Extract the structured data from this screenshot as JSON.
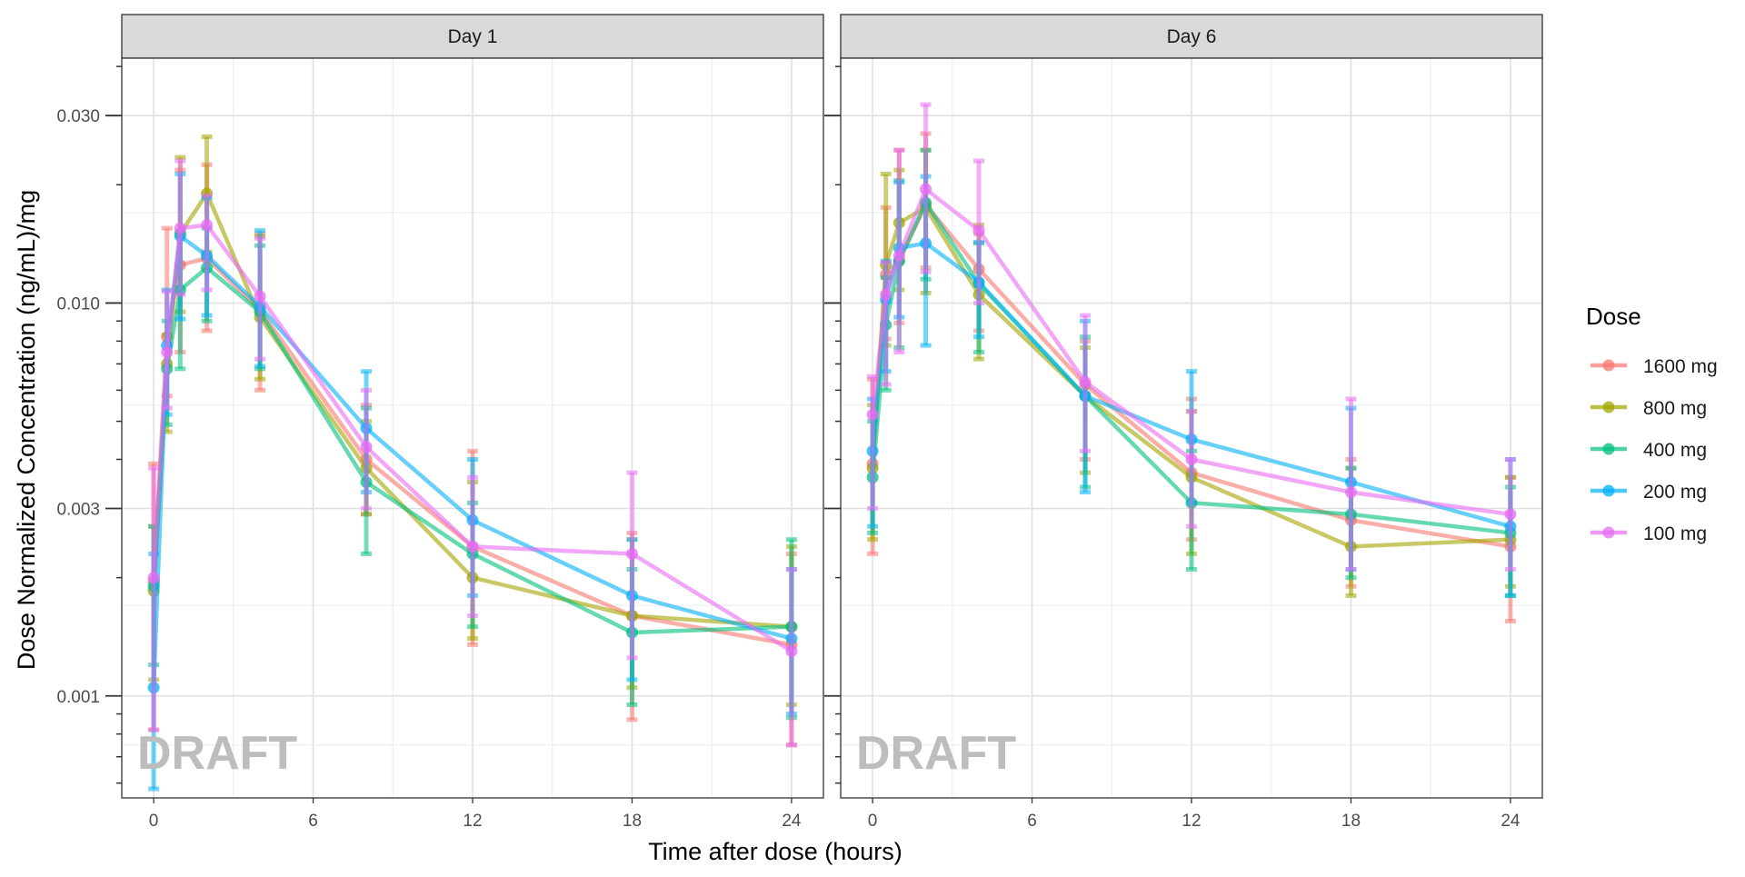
{
  "chart_data": {
    "type": "line",
    "xlabel": "Time after dose (hours)",
    "ylabel": "Dose Normalized Concentration (ng/mL)/mg",
    "y_scale": "log10",
    "ylim": [
      0.00055,
      0.042
    ],
    "xlim": [
      -1.2,
      25.2
    ],
    "x_ticks": [
      0,
      6,
      12,
      18,
      24
    ],
    "x_tick_labels": [
      "0",
      "6",
      "12",
      "18",
      "24"
    ],
    "y_ticks": [
      0.03,
      0.01,
      0.003,
      0.001
    ],
    "y_tick_labels": [
      "0.030",
      "0.010",
      "0.003",
      "0.001"
    ],
    "grid": true,
    "legend": {
      "title": "Dose",
      "position": "right"
    },
    "watermark": "DRAFT",
    "panels": [
      {
        "label": "Day 1",
        "series": [
          {
            "name": "1600 mg",
            "color": "#F8766D",
            "x": [
              0,
              0.5,
              1,
              2,
              4,
              8,
              12,
              18,
              24
            ],
            "y": [
              0.00195,
              0.0082,
              0.0125,
              0.013,
              0.0096,
              0.004,
              0.0024,
              0.0016,
              0.00135
            ],
            "lower": [
              0.00082,
              0.0058,
              0.0075,
              0.0085,
              0.006,
              0.0029,
              0.00135,
              0.00087,
              0.00075
            ],
            "upper": [
              0.0039,
              0.0155,
              0.0218,
              0.0225,
              0.015,
              0.0055,
              0.0042,
              0.0026,
              0.0023
            ]
          },
          {
            "name": "800 mg",
            "color": "#A3A500",
            "x": [
              0,
              0.5,
              1,
              2,
              4,
              8,
              12,
              18,
              24
            ],
            "y": [
              0.00185,
              0.007,
              0.015,
              0.019,
              0.0092,
              0.0038,
              0.002,
              0.0016,
              0.0015
            ],
            "lower": [
              0.0011,
              0.0047,
              0.0095,
              0.0135,
              0.0064,
              0.0029,
              0.0014,
              0.00105,
              0.00095
            ],
            "upper": [
              0.0027,
              0.0083,
              0.0235,
              0.0265,
              0.0148,
              0.005,
              0.0035,
              0.0025,
              0.0024
            ]
          },
          {
            "name": "400 mg",
            "color": "#00BF7D",
            "x": [
              0,
              0.5,
              1,
              2,
              4,
              8,
              12,
              18,
              24
            ],
            "y": [
              0.0019,
              0.0068,
              0.0108,
              0.0123,
              0.0095,
              0.0035,
              0.0023,
              0.00145,
              0.0015
            ],
            "lower": [
              0.0012,
              0.0049,
              0.0068,
              0.009,
              0.0068,
              0.0023,
              0.0015,
              0.00095,
              0.00088
            ],
            "upper": [
              0.0027,
              0.009,
              0.0152,
              0.0155,
              0.014,
              0.0054,
              0.0031,
              0.0021,
              0.0025
            ]
          },
          {
            "name": "200 mg",
            "color": "#00B0F6",
            "x": [
              0,
              0.5,
              1,
              2,
              4,
              8,
              12,
              18,
              24
            ],
            "y": [
              0.00105,
              0.0078,
              0.0148,
              0.0132,
              0.0098,
              0.0048,
              0.0028,
              0.0018,
              0.0014
            ],
            "lower": [
              0.00058,
              0.0052,
              0.0091,
              0.0093,
              0.0069,
              0.0033,
              0.0018,
              0.0011,
              0.0009
            ],
            "upper": [
              0.0023,
              0.0108,
              0.0213,
              0.0185,
              0.0153,
              0.0067,
              0.004,
              0.0025,
              0.0021
            ]
          },
          {
            "name": "100 mg",
            "color": "#E76BF3",
            "x": [
              0,
              0.5,
              1,
              2,
              4,
              8,
              12,
              18,
              24
            ],
            "y": [
              0.002,
              0.0075,
              0.0155,
              0.0158,
              0.0104,
              0.0043,
              0.0024,
              0.0023,
              0.0013
            ],
            "lower": [
              0.00082,
              0.0054,
              0.0105,
              0.0108,
              0.0072,
              0.003,
              0.0016,
              0.00125,
              0.00075
            ],
            "upper": [
              0.0038,
              0.0107,
              0.023,
              0.0188,
              0.0146,
              0.006,
              0.0036,
              0.0037,
              0.0021
            ]
          }
        ]
      },
      {
        "label": "Day 6",
        "series": [
          {
            "name": "1600 mg",
            "color": "#F8766D",
            "x": [
              0,
              0.5,
              1,
              2,
              4,
              8,
              12,
              18,
              24
            ],
            "y": [
              0.0039,
              0.0118,
              0.0128,
              0.0178,
              0.0122,
              0.0062,
              0.0037,
              0.0028,
              0.0024
            ],
            "lower": [
              0.0023,
              0.0081,
              0.0089,
              0.0123,
              0.0085,
              0.004,
              0.0025,
              0.0019,
              0.00155
            ],
            "upper": [
              0.0064,
              0.0175,
              0.0245,
              0.027,
              0.015,
              0.008,
              0.0057,
              0.004,
              0.0036
            ]
          },
          {
            "name": "800 mg",
            "color": "#A3A500",
            "x": [
              0,
              0.5,
              1,
              2,
              4,
              8,
              12,
              18,
              24
            ],
            "y": [
              0.0038,
              0.0125,
              0.016,
              0.0175,
              0.0105,
              0.0058,
              0.0036,
              0.0024,
              0.0025
            ],
            "lower": [
              0.0025,
              0.0078,
              0.0108,
              0.0106,
              0.0072,
              0.0037,
              0.0023,
              0.0018,
              0.0019
            ],
            "upper": [
              0.0055,
              0.0213,
              0.0218,
              0.0245,
              0.0158,
              0.0077,
              0.0053,
              0.0038,
              0.0036
            ]
          },
          {
            "name": "400 mg",
            "color": "#00BF7D",
            "x": [
              0,
              0.5,
              1,
              2,
              4,
              8,
              12,
              18,
              24
            ],
            "y": [
              0.0036,
              0.0088,
              0.0128,
              0.018,
              0.0112,
              0.0058,
              0.0031,
              0.0029,
              0.0026
            ],
            "lower": [
              0.0026,
              0.006,
              0.0077,
              0.0115,
              0.0075,
              0.0034,
              0.0021,
              0.002,
              0.0018
            ],
            "upper": [
              0.005,
              0.0116,
              0.0205,
              0.0245,
              0.0142,
              0.0082,
              0.0042,
              0.0038,
              0.0034
            ]
          },
          {
            "name": "200 mg",
            "color": "#00B0F6",
            "x": [
              0,
              0.5,
              1,
              2,
              4,
              8,
              12,
              18,
              24
            ],
            "y": [
              0.0042,
              0.0102,
              0.0138,
              0.0142,
              0.0113,
              0.0058,
              0.0045,
              0.0035,
              0.0027
            ],
            "lower": [
              0.0027,
              0.0067,
              0.0092,
              0.0078,
              0.0082,
              0.0033,
              0.0031,
              0.0021,
              0.0018
            ],
            "upper": [
              0.0057,
              0.0128,
              0.0203,
              0.021,
              0.0143,
              0.009,
              0.0067,
              0.0054,
              0.004
            ]
          },
          {
            "name": "100 mg",
            "color": "#E76BF3",
            "x": [
              0,
              0.5,
              1,
              2,
              4,
              8,
              12,
              18,
              24
            ],
            "y": [
              0.0052,
              0.0105,
              0.0132,
              0.0195,
              0.0153,
              0.0063,
              0.004,
              0.0033,
              0.0029
            ],
            "lower": [
              0.003,
              0.0062,
              0.0075,
              0.012,
              0.01,
              0.0042,
              0.0027,
              0.0021,
              0.0021
            ],
            "upper": [
              0.0065,
              0.0127,
              0.0245,
              0.032,
              0.023,
              0.0093,
              0.0053,
              0.0057,
              0.004
            ]
          }
        ]
      }
    ]
  }
}
